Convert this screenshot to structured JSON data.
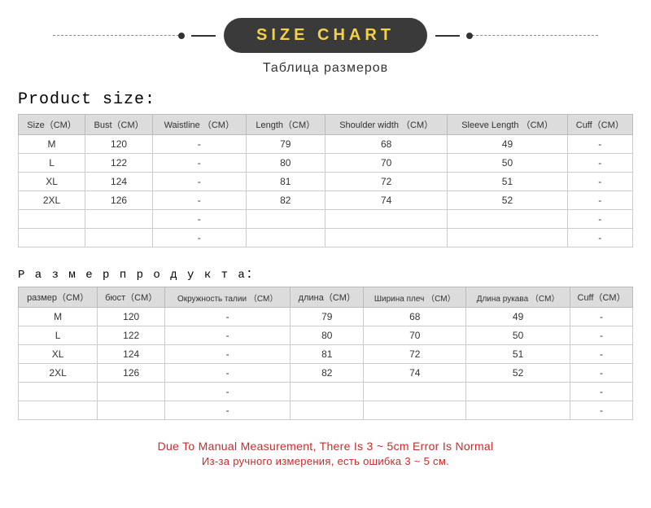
{
  "header": {
    "pill": "SIZE CHART",
    "subtitle": "Таблица размеров",
    "pill_bg": "#3a3a3a",
    "pill_color": "#f3d24a"
  },
  "table_en": {
    "title": "Product size:",
    "columns": [
      "Size（CM）",
      "Bust（CM）",
      "Waistline （CM）",
      "Length（CM）",
      "Shoulder width （CM）",
      "Sleeve Length （CM）",
      "Cuff（CM）"
    ],
    "rows": [
      [
        "M",
        "120",
        "-",
        "79",
        "68",
        "49",
        "-"
      ],
      [
        "L",
        "122",
        "-",
        "80",
        "70",
        "50",
        "-"
      ],
      [
        "XL",
        "124",
        "-",
        "81",
        "72",
        "51",
        "-"
      ],
      [
        "2XL",
        "126",
        "-",
        "82",
        "74",
        "52",
        "-"
      ],
      [
        "",
        "",
        "-",
        "",
        "",
        "",
        "-"
      ],
      [
        "",
        "",
        "-",
        "",
        "",
        "",
        "-"
      ]
    ],
    "header_bg": "#dcdcdc",
    "border_color": "#cccccc"
  },
  "table_ru": {
    "title": "Р а з м е р п р о д у к т а：",
    "columns": [
      "размер（CM）",
      "бюст（CM）",
      "Окружность талии （CM）",
      "длина（CM）",
      "Ширина плеч （CM）",
      "Длина рукава （CM）",
      "Cuff（CM）"
    ],
    "rows": [
      [
        "M",
        "120",
        "-",
        "79",
        "68",
        "49",
        "-"
      ],
      [
        "L",
        "122",
        "-",
        "80",
        "70",
        "50",
        "-"
      ],
      [
        "XL",
        "124",
        "-",
        "81",
        "72",
        "51",
        "-"
      ],
      [
        "2XL",
        "126",
        "-",
        "82",
        "74",
        "52",
        "-"
      ],
      [
        "",
        "",
        "-",
        "",
        "",
        "",
        "-"
      ],
      [
        "",
        "",
        "-",
        "",
        "",
        "",
        "-"
      ]
    ],
    "header_bg": "#dcdcdc",
    "border_color": "#cccccc"
  },
  "footer": {
    "en": "Due To Manual Measurement, There Is 3 ~ 5cm Error Is Normal",
    "ru": "Из-за ручного измерения, есть ошибка 3 ~ 5 см.",
    "color": "#c92a2a"
  }
}
